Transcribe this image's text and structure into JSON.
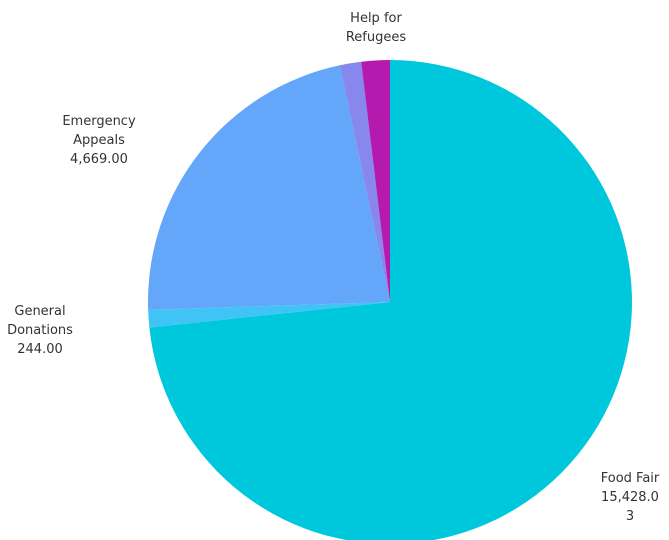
{
  "chart_data": {
    "type": "pie",
    "slices": [
      {
        "label": [
          "Food Fair",
          "15,428.0",
          "3"
        ],
        "value": 15428.03,
        "color": "#00C8DC"
      },
      {
        "label": [
          "General",
          "Donations",
          "244.00"
        ],
        "value": 244.0,
        "color": "#3FC4F5"
      },
      {
        "label": [
          "Emergency",
          "Appeals",
          "4,669.00"
        ],
        "value": 4669.0,
        "color": "#63A6FA"
      },
      {
        "label": [],
        "value": 300,
        "color": "#8787EE"
      },
      {
        "label": [
          "Help for",
          "Refugees"
        ],
        "value": 400,
        "color": "#B41AAE"
      }
    ]
  }
}
